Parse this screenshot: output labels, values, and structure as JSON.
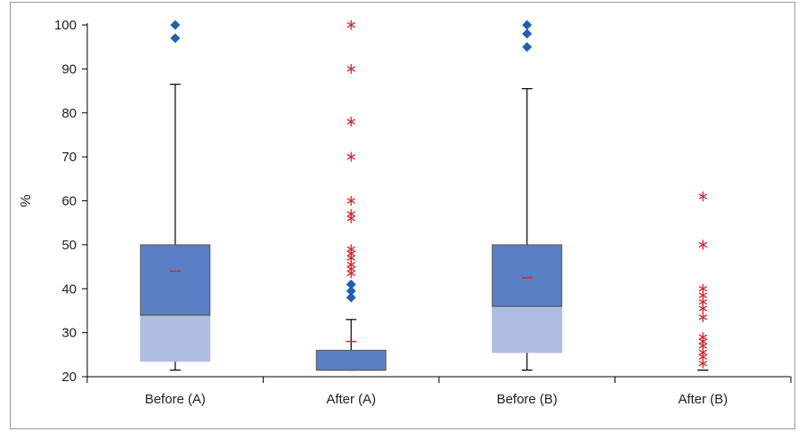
{
  "chart_data": {
    "type": "boxplot",
    "title": "",
    "xlabel": "",
    "ylabel": "%",
    "ylim": [
      20,
      100
    ],
    "yticks": [
      20,
      30,
      40,
      50,
      60,
      70,
      80,
      90,
      100
    ],
    "grid": false,
    "legend": "none",
    "categories": [
      "Before (A)",
      "After (A)",
      "Before (B)",
      "After (B)"
    ],
    "colors": {
      "box_upper": "#5b7fc4",
      "box_lower": "#b0bde2",
      "box_edge": "#555555",
      "mean_marker": "#e0202a",
      "outlier_diamond": "#1f5fb5",
      "outlier_star": "#e0202a",
      "whisker": "#000000"
    },
    "boxes": [
      {
        "category": "Before (A)",
        "min": 21.5,
        "q1": 23.5,
        "median": 34,
        "q3": 50,
        "max": 86.5,
        "mean": 44,
        "outliers_diamond": [
          97,
          100
        ],
        "outliers_star": []
      },
      {
        "category": "After (A)",
        "min": 21.5,
        "q1": 21.5,
        "median": 21.5,
        "q3": 26,
        "max": 33,
        "mean": 28,
        "outliers_diamond": [
          38,
          39.5,
          41
        ],
        "outliers_star": [
          43.5,
          44.5,
          45.5,
          47,
          48,
          49,
          56,
          57,
          60,
          70,
          78,
          90,
          100
        ]
      },
      {
        "category": "Before (B)",
        "min": 21.5,
        "q1": 25.5,
        "median": 36,
        "q3": 50,
        "max": 85.5,
        "mean": 42.5,
        "outliers_diamond": [
          95,
          98,
          100
        ],
        "outliers_star": []
      },
      {
        "category": "After (B)",
        "min": 21.5,
        "q1": null,
        "median": null,
        "q3": null,
        "max": 21.5,
        "mean": null,
        "outliers_diamond": [],
        "outliers_star": [
          23,
          24.5,
          25.5,
          27,
          28,
          29,
          33.5,
          35.5,
          37,
          38.5,
          40,
          50,
          61
        ]
      }
    ]
  }
}
